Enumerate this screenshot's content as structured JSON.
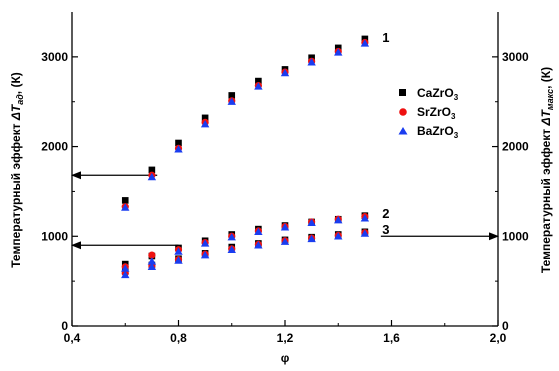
{
  "chart_data": {
    "type": "scatter",
    "xlabel": "φ",
    "ylabel_left": "Температурный эффект ΔT_ад(К)",
    "ylabel_left_main": "Температурный эффект ",
    "ylabel_left_sym": "ΔT",
    "ylabel_left_sub": "ад",
    "ylabel_left_unit": ", (К)",
    "ylabel_right": "Температурный эффект ΔT_макс, (К)",
    "ylabel_right_main": "Температурный эффект ",
    "ylabel_right_sym": "ΔT",
    "ylabel_right_sub": "макс",
    "ylabel_right_unit": ", (К)",
    "xlim": [
      0.4,
      2.0
    ],
    "ylim": [
      0,
      3500
    ],
    "xticks": [
      "0,4",
      "0,8",
      "1,2",
      "1,6",
      "2,0"
    ],
    "xtick_values": [
      0.4,
      0.8,
      1.2,
      1.6,
      2.0
    ],
    "yticks": [
      "0",
      "1000",
      "2000",
      "3000"
    ],
    "ytick_values": [
      0,
      1000,
      2000,
      3000
    ],
    "grid": false,
    "legend_position": "right",
    "series": [
      {
        "name": "CaZrO3",
        "legend_main": "CaZrO",
        "legend_sub": "3",
        "color": "#000000",
        "marker": "square",
        "curves": {
          "1": {
            "x": [
              0.6,
              0.7,
              0.8,
              0.9,
              1.0,
              1.1,
              1.2,
              1.3,
              1.4,
              1.5
            ],
            "y": [
              1400,
              1740,
              2040,
              2320,
              2570,
              2730,
              2860,
              2990,
              3100,
              3200
            ]
          },
          "2": {
            "x": [
              0.6,
              0.7,
              0.8,
              0.9,
              1.0,
              1.1,
              1.2,
              1.3,
              1.4,
              1.5
            ],
            "y": [
              690,
              780,
              870,
              950,
              1020,
              1080,
              1120,
              1160,
              1190,
              1230
            ]
          },
          "3": {
            "x": [
              0.6,
              0.7,
              0.8,
              0.9,
              1.0,
              1.1,
              1.2,
              1.3,
              1.4,
              1.5
            ],
            "y": [
              610,
              680,
              750,
              810,
              880,
              920,
              960,
              990,
              1020,
              1050
            ]
          }
        }
      },
      {
        "name": "SrZrO3",
        "legend_main": "SrZrO",
        "legend_sub": "3",
        "color": "#ee1111",
        "marker": "circle",
        "curves": {
          "1": {
            "x": [
              0.6,
              0.7,
              0.8,
              0.9,
              1.0,
              1.1,
              1.2,
              1.3,
              1.4,
              1.5
            ],
            "y": [
              1330,
              1680,
              1980,
              2270,
              2510,
              2680,
              2830,
              2950,
              3060,
              3160
            ]
          },
          "2": {
            "x": [
              0.6,
              0.7,
              0.8,
              0.9,
              1.0,
              1.1,
              1.2,
              1.3,
              1.4,
              1.5
            ],
            "y": [
              660,
              790,
              850,
              930,
              1000,
              1060,
              1110,
              1160,
              1190,
              1220
            ]
          },
          "3": {
            "x": [
              0.6,
              0.7,
              0.8,
              0.9,
              1.0,
              1.1,
              1.2,
              1.3,
              1.4,
              1.5
            ],
            "y": [
              590,
              670,
              740,
              800,
              860,
              910,
              950,
              980,
              1010,
              1040
            ]
          }
        }
      },
      {
        "name": "BaZrO3",
        "legend_main": "BaZrO",
        "legend_sub": "3",
        "color": "#1a3df0",
        "marker": "triangle",
        "curves": {
          "1": {
            "x": [
              0.6,
              0.7,
              0.8,
              0.9,
              1.0,
              1.1,
              1.2,
              1.3,
              1.4,
              1.5
            ],
            "y": [
              1320,
              1660,
              1970,
              2250,
              2500,
              2670,
              2820,
              2940,
              3050,
              3150
            ]
          },
          "2": {
            "x": [
              0.6,
              0.7,
              0.8,
              0.9,
              1.0,
              1.1,
              1.2,
              1.3,
              1.4,
              1.5
            ],
            "y": [
              640,
              720,
              830,
              920,
              990,
              1050,
              1100,
              1150,
              1180,
              1200
            ]
          },
          "3": {
            "x": [
              0.6,
              0.7,
              0.8,
              0.9,
              1.0,
              1.1,
              1.2,
              1.3,
              1.4,
              1.5
            ],
            "y": [
              570,
              660,
              730,
              790,
              850,
              900,
              940,
              970,
              1000,
              1030
            ]
          }
        }
      }
    ],
    "curve_labels": [
      {
        "text": "1",
        "x": 1.55,
        "y": 3210
      },
      {
        "text": "2",
        "x": 1.55,
        "y": 1250
      },
      {
        "text": "3",
        "x": 1.55,
        "y": 1070
      }
    ],
    "arrows": [
      {
        "direction": "left",
        "x_from": 0.72,
        "x_to": 0.4,
        "y": 1680
      },
      {
        "direction": "left",
        "x_from": 0.8,
        "x_to": 0.4,
        "y": 900
      },
      {
        "direction": "right",
        "x_from": 1.56,
        "x_to": 2.0,
        "y": 1000
      }
    ]
  }
}
